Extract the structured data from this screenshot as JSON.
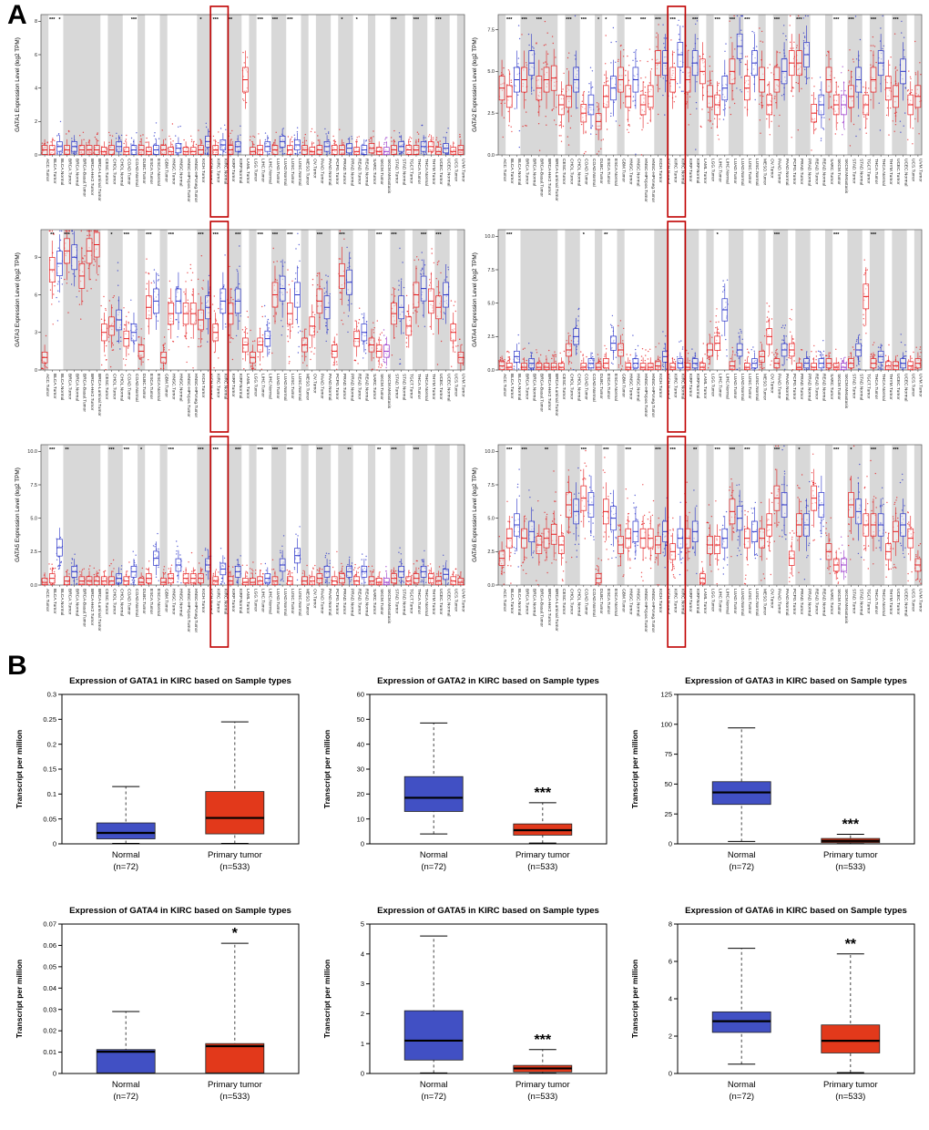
{
  "figure": {
    "panel_a_label": "A",
    "panel_b_label": "B"
  },
  "colors": {
    "tumor": "#e41a1c",
    "normal": "#2731c8",
    "metastasis": "#9632c8",
    "band": "#d8d8d8",
    "highlight_box": "#c00000",
    "b_normal": "#4150c4",
    "b_tumor": "#e2391b"
  },
  "timer_categories": [
    "ACC.Tumor",
    "BLCA.Tumor",
    "BLCA.Normal",
    "BRCA.Tumor",
    "BRCA.Normal",
    "BRCA-Basal.Tumor",
    "BRCA-Her2.Tumor",
    "BRCA-Luminal.Tumor",
    "CESC.Tumor",
    "CHOL.Tumor",
    "CHOL.Normal",
    "COAD.Tumor",
    "COAD.Normal",
    "DLBC.Tumor",
    "ESCA.Tumor",
    "ESCA.Normal",
    "GBM.Tumor",
    "HNSC.Tumor",
    "HNSC.Normal",
    "HNSC-HPVpos.Tumor",
    "HNSC-HPVneg.Tumor",
    "KICH.Tumor",
    "KICH.Normal",
    "KIRC.Tumor",
    "KIRC.Normal",
    "KIRP.Tumor",
    "KIRP.Normal",
    "LAML.Tumor",
    "LGG.Tumor",
    "LIHC.Tumor",
    "LIHC.Normal",
    "LUAD.Tumor",
    "LUAD.Normal",
    "LUSC.Tumor",
    "LUSC.Normal",
    "MESO.Tumor",
    "OV.Tumor",
    "PAAD.Tumor",
    "PAAD.Normal",
    "PCPG.Tumor",
    "PRAD.Tumor",
    "PRAD.Normal",
    "READ.Tumor",
    "READ.Normal",
    "SARC.Tumor",
    "SKCM.Tumor",
    "SKCM.Metastasis",
    "STAD.Tumor",
    "STAD.Normal",
    "TGCT.Tumor",
    "THCA.Tumor",
    "THCA.Normal",
    "THYM.Tumor",
    "UCEC.Tumor",
    "UCEC.Normal",
    "UCS.Tumor",
    "UVM.Tumor"
  ],
  "chart_data": [
    {
      "panel": "A",
      "type": "box",
      "gene": "GATA1",
      "ylabel": "GATA1 Expression Level (log2 TPM)",
      "ylim": [
        0,
        8.4
      ],
      "yticks": [
        0,
        2,
        4,
        6,
        8
      ],
      "ytick_labels": [
        "0",
        "2",
        "4",
        "6",
        "8"
      ],
      "medians": [
        0.3,
        0.3,
        0.5,
        0.3,
        0.5,
        0.3,
        0.3,
        0.3,
        0.2,
        0.3,
        0.5,
        0.2,
        0.3,
        0.3,
        0.2,
        0.3,
        0.3,
        0.2,
        0.4,
        0.2,
        0.2,
        0.3,
        0.8,
        0.3,
        0.6,
        0.3,
        0.5,
        4.5,
        0.2,
        0.3,
        0.5,
        0.3,
        0.8,
        0.3,
        0.6,
        0.3,
        0.2,
        0.3,
        0.5,
        0.3,
        0.3,
        0.4,
        0.2,
        0.3,
        0.4,
        0.2,
        0.2,
        0.3,
        0.5,
        0.3,
        0.3,
        0.5,
        0.5,
        0.2,
        0.4,
        0.2,
        0.3
      ],
      "sig": {
        "1": "***",
        "2": "*",
        "12": "***",
        "21": "*",
        "23": "***",
        "25": "**",
        "29": "***",
        "31": "***",
        "33": "***",
        "40": "*",
        "42": "*",
        "47": "***",
        "50": "***",
        "53": "***"
      }
    },
    {
      "panel": "A",
      "type": "box",
      "gene": "GATA2",
      "ylabel": "GATA2 Expression Level (log2 TPM)",
      "ylim": [
        0,
        8.4
      ],
      "yticks": [
        0,
        2.5,
        5,
        7.5
      ],
      "ytick_labels": [
        "0.0",
        "2.5",
        "5.0",
        "7.5"
      ],
      "medians": [
        4.0,
        3.5,
        4.5,
        4.5,
        5.5,
        4.0,
        4.5,
        4.6,
        3.0,
        3.5,
        4.5,
        2.5,
        3.0,
        2.0,
        3.5,
        4.0,
        4.5,
        3.5,
        4.5,
        3.0,
        3.5,
        5.5,
        5.5,
        4.5,
        6.0,
        4.5,
        5.5,
        5.0,
        3.5,
        3.0,
        4.0,
        5.0,
        6.5,
        4.0,
        5.5,
        4.5,
        3.0,
        4.5,
        5.0,
        5.5,
        5.5,
        6.0,
        2.5,
        3.0,
        4.5,
        3.0,
        3.0,
        3.5,
        4.5,
        3.0,
        4.5,
        5.5,
        4.0,
        3.5,
        5.0,
        3.0,
        3.5
      ],
      "sig": {
        "1": "***",
        "3": "***",
        "5": "***",
        "9": "***",
        "11": "***",
        "13": "*",
        "14": "*",
        "17": "***",
        "19": "***",
        "21": "***",
        "23": "***",
        "26": "***",
        "29": "***",
        "31": "***",
        "33": "***",
        "37": "***",
        "40": "***",
        "45": "***",
        "47": "***",
        "50": "***",
        "53": "***"
      }
    },
    {
      "panel": "A",
      "type": "box",
      "gene": "GATA3",
      "ylabel": "GATA3 Expression Level (log2 TPM)",
      "ylim": [
        0,
        11.2
      ],
      "yticks": [
        0,
        3,
        6,
        9
      ],
      "ytick_labels": [
        "0",
        "3",
        "6",
        "9"
      ],
      "medians": [
        1.0,
        8.0,
        8.5,
        9.5,
        9.0,
        7.5,
        9.5,
        10,
        3.0,
        3.5,
        4.0,
        2.5,
        3.0,
        1.5,
        5.0,
        5.5,
        1.0,
        4.5,
        5.5,
        4.5,
        4.5,
        4.0,
        5.0,
        3.0,
        5.5,
        4.5,
        5.5,
        2.0,
        1.0,
        2.0,
        2.5,
        6.0,
        6.5,
        4.5,
        6.0,
        2.0,
        3.5,
        5.5,
        5.0,
        1.5,
        7.5,
        7.0,
        2.5,
        3.0,
        2.0,
        1.5,
        1.5,
        4.5,
        5.0,
        3.5,
        6.0,
        6.5,
        5.5,
        5.0,
        6.0,
        3.0,
        1.0
      ],
      "sig": {
        "1": "**",
        "3": "***",
        "9": "*",
        "11": "***",
        "14": "***",
        "17": "***",
        "21": "***",
        "23": "***",
        "26": "***",
        "29": "***",
        "31": "***",
        "33": "***",
        "37": "***",
        "40": "***",
        "45": "***",
        "47": "***",
        "51": "***",
        "53": "***"
      }
    },
    {
      "panel": "A",
      "type": "box",
      "gene": "GATA4",
      "ylabel": "GATA4 Expression Level (log2 TPM)",
      "ylim": [
        0,
        10.5
      ],
      "yticks": [
        0,
        2.5,
        5,
        7.5,
        10
      ],
      "ytick_labels": [
        "0.0",
        "2.5",
        "5.0",
        "7.5",
        "10.0"
      ],
      "medians": [
        0.3,
        0.2,
        1.0,
        0.2,
        0.5,
        0.2,
        0.2,
        0.2,
        0.2,
        1.5,
        2.5,
        0.2,
        0.5,
        0.2,
        0.5,
        2.0,
        1.5,
        0.2,
        0.5,
        0.2,
        0.2,
        0.3,
        1.0,
        0.2,
        0.5,
        0.2,
        0.5,
        0.2,
        1.5,
        2.0,
        4.5,
        0.3,
        1.5,
        0.2,
        0.5,
        1.0,
        2.5,
        0.5,
        1.5,
        1.5,
        0.2,
        0.5,
        0.2,
        0.5,
        0.5,
        0.2,
        0.2,
        0.5,
        1.5,
        5.5,
        0.5,
        1.0,
        0.3,
        0.3,
        0.5,
        0.3,
        0.5
      ],
      "sig": {
        "1": "***",
        "11": "*",
        "14": "**",
        "29": "*",
        "37": "***",
        "45": "***",
        "50": "***"
      }
    },
    {
      "panel": "A",
      "type": "box",
      "gene": "GATA5",
      "ylabel": "GATA5 Expression Level (log2 TPM)",
      "ylim": [
        0,
        10.5
      ],
      "yticks": [
        0,
        2.5,
        5,
        7.5,
        10
      ],
      "ytick_labels": [
        "0.0",
        "2.5",
        "5.0",
        "7.5",
        "10.0"
      ],
      "medians": [
        0.2,
        0.5,
        2.8,
        0.3,
        1.0,
        0.3,
        0.3,
        0.3,
        0.3,
        0.3,
        0.5,
        0.3,
        1.0,
        0.2,
        0.5,
        2.0,
        0.2,
        0.5,
        1.5,
        0.5,
        0.5,
        0.5,
        1.5,
        0.3,
        1.2,
        0.3,
        1.0,
        0.2,
        0.2,
        0.3,
        0.5,
        0.3,
        1.5,
        0.3,
        2.2,
        0.3,
        0.3,
        0.5,
        1.0,
        0.3,
        0.5,
        1.0,
        0.3,
        1.0,
        0.3,
        0.2,
        0.2,
        0.5,
        1.0,
        0.3,
        0.5,
        1.0,
        0.5,
        0.3,
        0.8,
        0.3,
        0.2
      ],
      "sig": {
        "1": "***",
        "3": "**",
        "9": "***",
        "11": "***",
        "13": "*",
        "17": "***",
        "21": "***",
        "23": "***",
        "26": "***",
        "29": "***",
        "31": "***",
        "33": "***",
        "37": "***",
        "41": "**",
        "45": "**",
        "47": "***",
        "50": "***"
      }
    },
    {
      "panel": "A",
      "type": "box",
      "gene": "GATA6",
      "ylabel": "GATA6 Expression Level (log2 TPM)",
      "ylim": [
        0,
        10.5
      ],
      "yticks": [
        0,
        2.5,
        5,
        7.5,
        10
      ],
      "ytick_labels": [
        "0.0",
        "2.5",
        "5.0",
        "7.5",
        "10.0"
      ],
      "medians": [
        2.0,
        3.5,
        4.5,
        3.5,
        4.0,
        3.0,
        3.5,
        3.8,
        3.0,
        6.0,
        5.5,
        6.5,
        6.0,
        0.5,
        5.5,
        5.0,
        3.0,
        3.5,
        4.0,
        3.5,
        3.5,
        3.0,
        4.0,
        2.5,
        3.5,
        3.5,
        4.0,
        0.5,
        3.0,
        3.0,
        3.5,
        5.5,
        5.0,
        3.5,
        4.0,
        3.5,
        4.5,
        6.5,
        6.0,
        2.0,
        4.5,
        4.5,
        6.5,
        6.0,
        2.5,
        1.5,
        1.5,
        6.0,
        5.5,
        4.5,
        4.5,
        4.5,
        2.5,
        4.0,
        4.5,
        3.5,
        1.5
      ],
      "sig": {
        "1": "***",
        "3": "***",
        "6": "**",
        "11": "***",
        "14": "***",
        "17": "***",
        "21": "***",
        "23": "***",
        "26": "**",
        "29": "***",
        "31": "***",
        "33": "***",
        "37": "***",
        "40": "*",
        "45": "***",
        "47": "*",
        "50": "***",
        "53": "***"
      }
    },
    {
      "panel": "B",
      "type": "box",
      "gene": "GATA1",
      "title": "Expression of GATA1 in KIRC based on Sample types",
      "ylabel": "Transcript per million",
      "ylim": [
        0,
        0.3
      ],
      "yticks": [
        0,
        0.05,
        0.1,
        0.15,
        0.2,
        0.25,
        0.3
      ],
      "ytick_labels": [
        "0",
        "0.05",
        "0.1",
        "0.15",
        "0.2",
        "0.25",
        "0.3"
      ],
      "groups": [
        {
          "label": "Normal",
          "sublabel": "(n=72)",
          "color_key": "b_normal",
          "lo": 0.001,
          "q1": 0.01,
          "med": 0.022,
          "q3": 0.042,
          "hi": 0.115,
          "sig": ""
        },
        {
          "label": "Primary tumor",
          "sublabel": "(n=533)",
          "color_key": "b_tumor",
          "lo": 0.001,
          "q1": 0.02,
          "med": 0.052,
          "q3": 0.105,
          "hi": 0.245,
          "sig": ""
        }
      ]
    },
    {
      "panel": "B",
      "type": "box",
      "gene": "GATA2",
      "title": "Expression of GATA2 in KIRC based on Sample types",
      "ylabel": "Transcript per million",
      "ylim": [
        0,
        60
      ],
      "yticks": [
        0,
        10,
        20,
        30,
        40,
        50,
        60
      ],
      "ytick_labels": [
        "0",
        "10",
        "20",
        "30",
        "40",
        "50",
        "60"
      ],
      "groups": [
        {
          "label": "Normal",
          "sublabel": "(n=72)",
          "color_key": "b_normal",
          "lo": 4,
          "q1": 13,
          "med": 18.5,
          "q3": 27,
          "hi": 48.5,
          "sig": ""
        },
        {
          "label": "Primary tumor",
          "sublabel": "(n=533)",
          "color_key": "b_tumor",
          "lo": 0.3,
          "q1": 3.5,
          "med": 5.5,
          "q3": 8,
          "hi": 16.5,
          "sig": "***"
        }
      ]
    },
    {
      "panel": "B",
      "type": "box",
      "gene": "GATA3",
      "title": "Expression of GATA3 in KIRC based on Sample types",
      "ylabel": "Transcript per million",
      "ylim": [
        0,
        125
      ],
      "yticks": [
        0,
        25,
        50,
        75,
        100,
        125
      ],
      "ytick_labels": [
        "0",
        "25",
        "50",
        "75",
        "100",
        "125"
      ],
      "groups": [
        {
          "label": "Normal",
          "sublabel": "(n=72)",
          "color_key": "b_normal",
          "lo": 2,
          "q1": 33,
          "med": 43,
          "q3": 52,
          "hi": 97,
          "sig": ""
        },
        {
          "label": "Primary tumor",
          "sublabel": "(n=533)",
          "color_key": "b_tumor",
          "lo": 0.2,
          "q1": 1,
          "med": 2.5,
          "q3": 4.5,
          "hi": 8,
          "sig": "***"
        }
      ]
    },
    {
      "panel": "B",
      "type": "box",
      "gene": "GATA4",
      "title": "Expression of GATA4 in KIRC based on Sample types",
      "ylabel": "Transcript per million",
      "ylim": [
        0,
        0.07
      ],
      "yticks": [
        0,
        0.01,
        0.02,
        0.03,
        0.04,
        0.05,
        0.06,
        0.07
      ],
      "ytick_labels": [
        "0",
        "0.01",
        "0.02",
        "0.03",
        "0.04",
        "0.05",
        "0.06",
        "0.07"
      ],
      "groups": [
        {
          "label": "Normal",
          "sublabel": "(n=72)",
          "color_key": "b_normal",
          "lo": 0.0001,
          "q1": 0.0003,
          "med": 0.0102,
          "q3": 0.0112,
          "hi": 0.029,
          "sig": ""
        },
        {
          "label": "Primary tumor",
          "sublabel": "(n=533)",
          "color_key": "b_tumor",
          "lo": 0.0001,
          "q1": 0.0003,
          "med": 0.0128,
          "q3": 0.014,
          "hi": 0.061,
          "sig": "*"
        }
      ]
    },
    {
      "panel": "B",
      "type": "box",
      "gene": "GATA5",
      "title": "Expression of GATA5 in KIRC based on Sample types",
      "ylabel": "Transcript per million",
      "ylim": [
        0,
        5
      ],
      "yticks": [
        0,
        1,
        2,
        3,
        4,
        5
      ],
      "ytick_labels": [
        "0",
        "1",
        "2",
        "3",
        "4",
        "5"
      ],
      "groups": [
        {
          "label": "Normal",
          "sublabel": "(n=72)",
          "color_key": "b_normal",
          "lo": 0.02,
          "q1": 0.45,
          "med": 1.1,
          "q3": 2.1,
          "hi": 4.6,
          "sig": ""
        },
        {
          "label": "Primary tumor",
          "sublabel": "(n=533)",
          "color_key": "b_tumor",
          "lo": 0.01,
          "q1": 0.05,
          "med": 0.17,
          "q3": 0.27,
          "hi": 0.8,
          "sig": "***"
        }
      ]
    },
    {
      "panel": "B",
      "type": "box",
      "gene": "GATA6",
      "title": "Expression of GATA6 in KIRC based on Sample types",
      "ylabel": "Transcript per million",
      "ylim": [
        0,
        8
      ],
      "yticks": [
        0,
        2,
        4,
        6,
        8
      ],
      "ytick_labels": [
        "0",
        "2",
        "4",
        "6",
        "8"
      ],
      "groups": [
        {
          "label": "Normal",
          "sublabel": "(n=72)",
          "color_key": "b_normal",
          "lo": 0.5,
          "q1": 2.2,
          "med": 2.8,
          "q3": 3.3,
          "hi": 6.7,
          "sig": ""
        },
        {
          "label": "Primary tumor",
          "sublabel": "(n=533)",
          "color_key": "b_tumor",
          "lo": 0.05,
          "q1": 1.1,
          "med": 1.75,
          "q3": 2.6,
          "hi": 6.4,
          "sig": "**"
        }
      ]
    }
  ]
}
